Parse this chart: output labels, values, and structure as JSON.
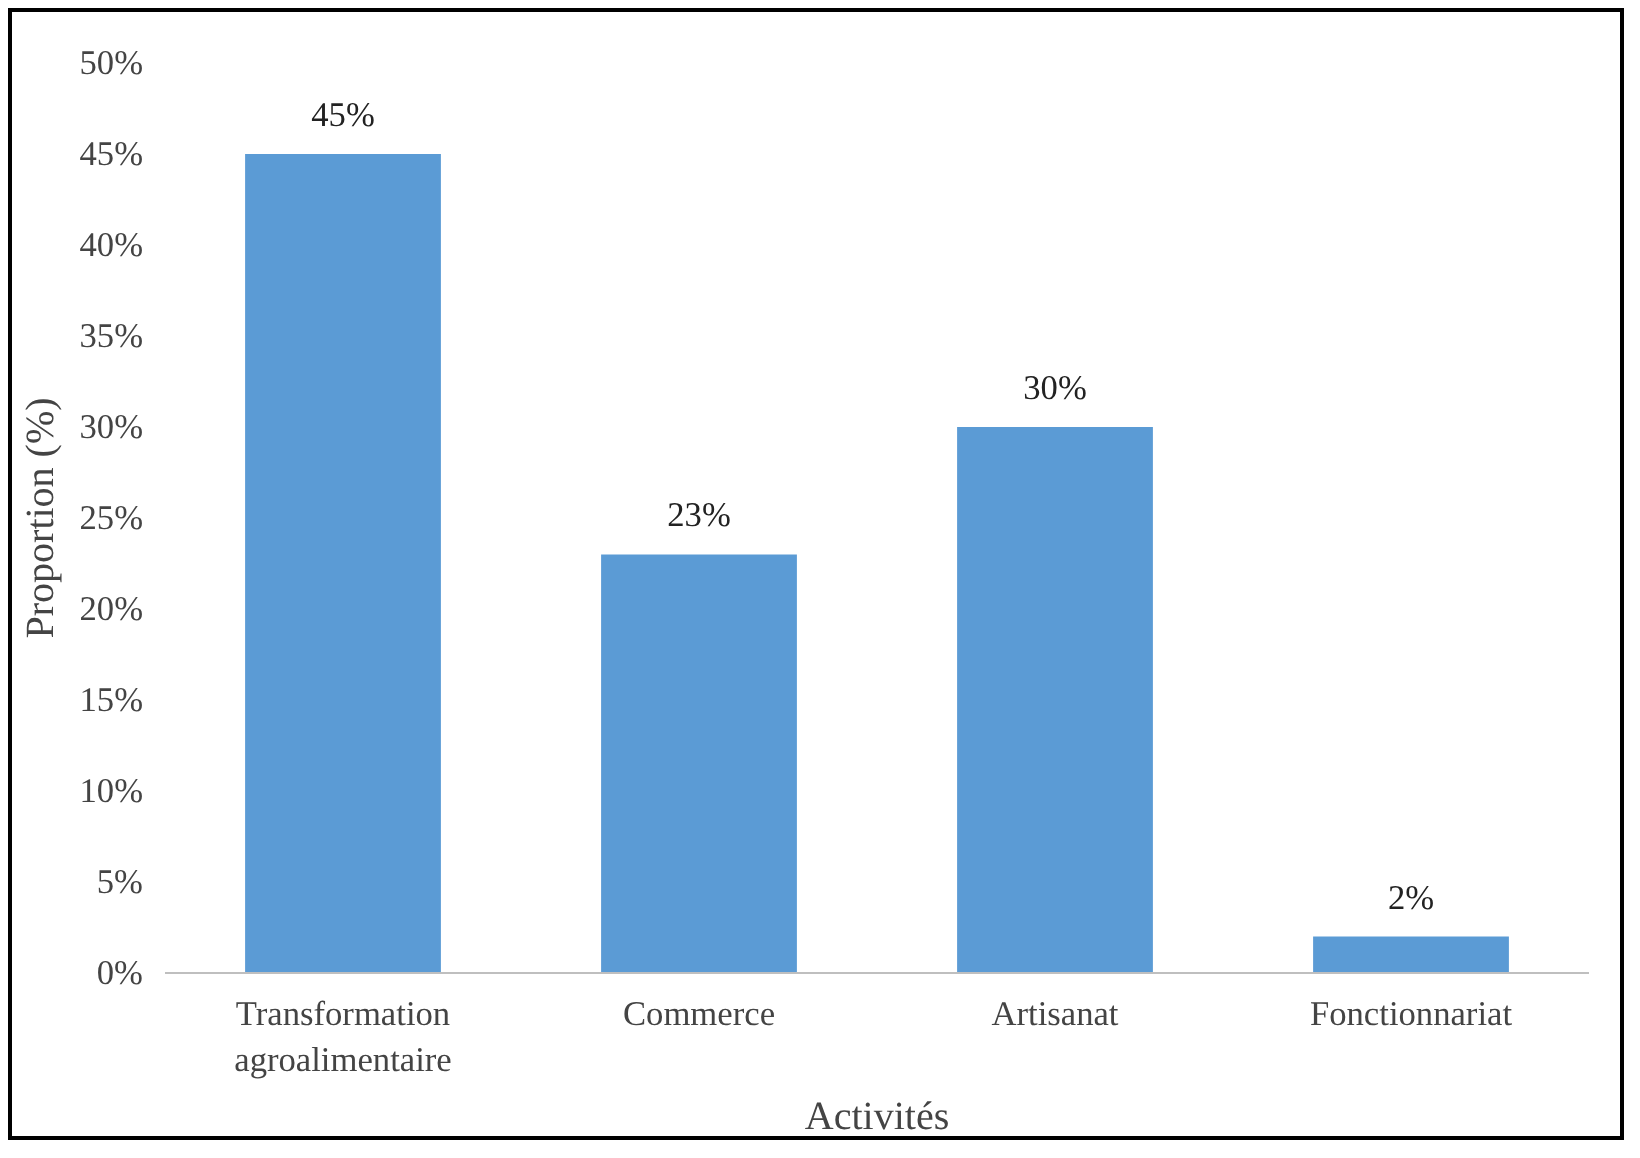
{
  "chart_data": {
    "type": "bar",
    "xlabel": "Activités",
    "ylabel": "Proportion (%)",
    "categories": [
      "Transformation agroalimentaire",
      "Commerce",
      "Artisanat",
      "Fonctionnariat"
    ],
    "values": [
      45,
      23,
      30,
      2
    ],
    "color": "#5b9bd5",
    "value_labels": [
      "45%",
      "23%",
      "30%",
      "2%"
    ],
    "ylim": [
      0,
      50
    ],
    "yticks": [
      {
        "value": 0,
        "label": "0%"
      },
      {
        "value": 5,
        "label": "5%"
      },
      {
        "value": 10,
        "label": "10%"
      },
      {
        "value": 15,
        "label": "15%"
      },
      {
        "value": 20,
        "label": "20%"
      },
      {
        "value": 25,
        "label": "25%"
      },
      {
        "value": 30,
        "label": "30%"
      },
      {
        "value": 35,
        "label": "35%"
      },
      {
        "value": 40,
        "label": "40%"
      },
      {
        "value": 45,
        "label": "45%"
      },
      {
        "value": 50,
        "label": "50%"
      }
    ],
    "grid": false
  }
}
